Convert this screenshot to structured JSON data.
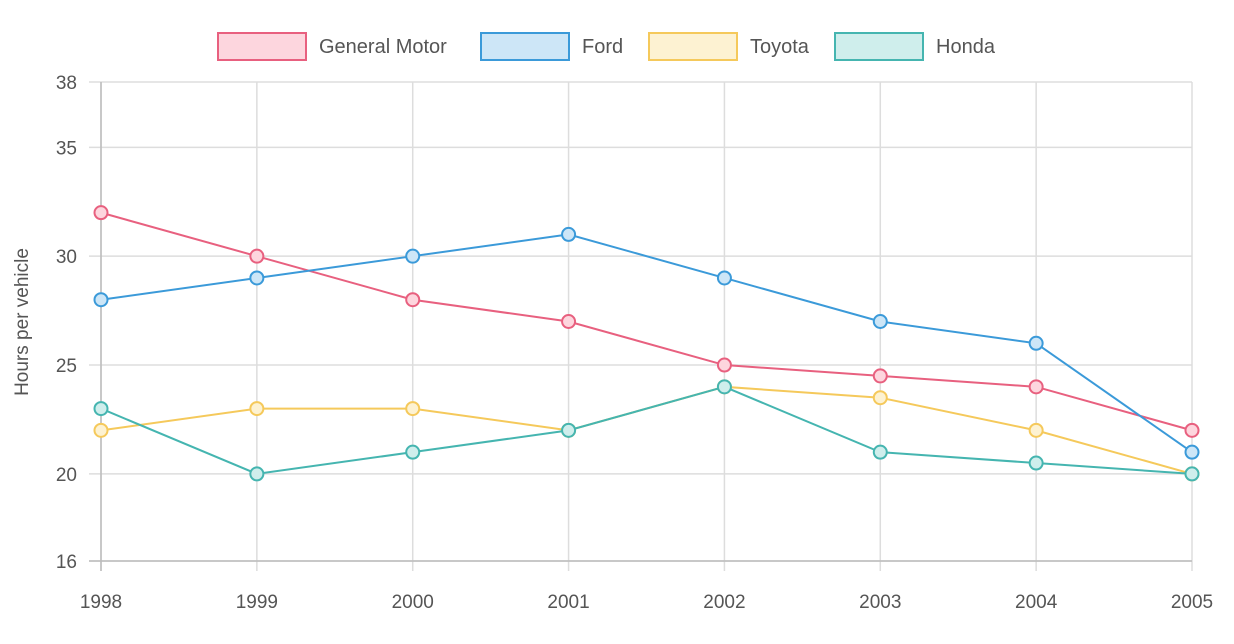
{
  "chart_data": {
    "type": "line",
    "categories": [
      "1998",
      "1999",
      "2000",
      "2001",
      "2002",
      "2003",
      "2004",
      "2005"
    ],
    "series": [
      {
        "name": "General Motor",
        "values": [
          32,
          30,
          28,
          27,
          25,
          24.5,
          24,
          22
        ],
        "color": "#e8607f",
        "fill": "#fdd6de"
      },
      {
        "name": "Ford",
        "values": [
          28,
          29,
          30,
          31,
          29,
          27,
          26,
          21
        ],
        "color": "#3b9ad9",
        "fill": "#cde6f7"
      },
      {
        "name": "Toyota",
        "values": [
          22,
          23,
          23,
          22,
          24,
          23.5,
          22,
          20
        ],
        "color": "#f5c95b",
        "fill": "#fdf2d2"
      },
      {
        "name": "Honda",
        "values": [
          23,
          20,
          21,
          22,
          24,
          21,
          20.5,
          20
        ],
        "color": "#45b5b0",
        "fill": "#cfeeec"
      }
    ],
    "title": "",
    "xlabel": "",
    "ylabel": "Hours per vehicle",
    "ylim": [
      16,
      38
    ],
    "yticks": [
      "16",
      "20",
      "25",
      "30",
      "35",
      "38"
    ],
    "grid": true,
    "legend": "top"
  }
}
